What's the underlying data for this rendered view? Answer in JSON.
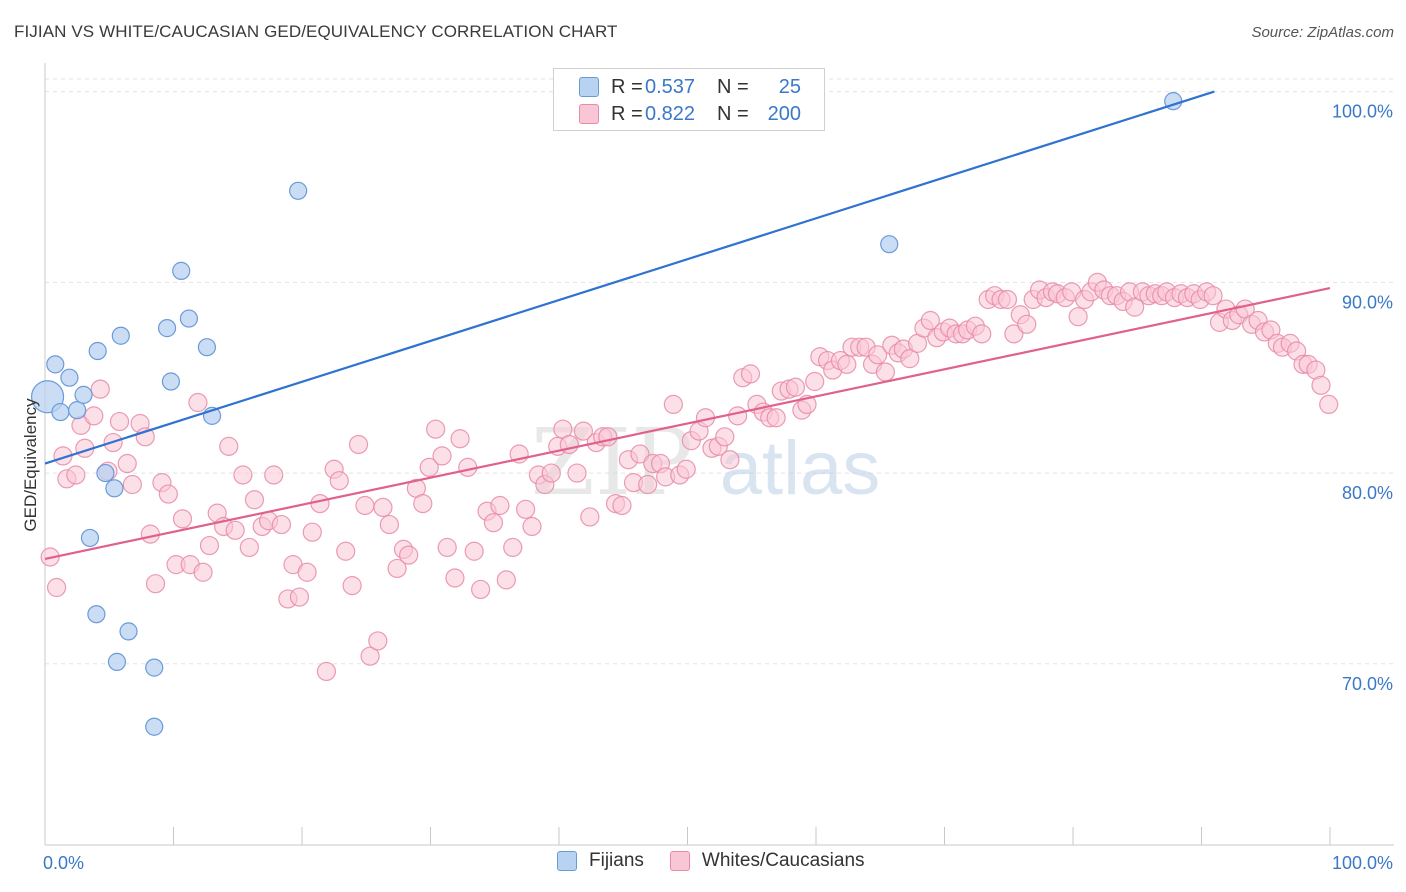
{
  "header": {
    "title": "FIJIAN VS WHITE/CAUCASIAN GED/EQUIVALENCY CORRELATION CHART",
    "source": "Source: ZipAtlas.com"
  },
  "legend_top": {
    "rows": [
      {
        "r_label": "R =",
        "r_value": "0.537",
        "n_label": "N =",
        "n_value": "25"
      },
      {
        "r_label": "R =",
        "r_value": "0.822",
        "n_label": "N =",
        "n_value": "200"
      }
    ]
  },
  "legend_bottom": {
    "items": [
      "Fijians",
      "Whites/Caucasians"
    ]
  },
  "watermark": {
    "zip": "ZIP",
    "atlas": "atlas"
  },
  "colors": {
    "blue_fill": "#b8d2f2",
    "blue_stroke": "#6a9bd8",
    "blue_line": "#2f72d0",
    "pink_fill": "#f9c6d6",
    "pink_stroke": "#e88aa8",
    "pink_line": "#e0608e",
    "tick_label": "#3a78c9",
    "grid": "#e3e3e3"
  },
  "chart_data": {
    "type": "scatter",
    "title": "FIJIAN VS WHITE/CAUCASIAN GED/EQUIVALENCY CORRELATION CHART",
    "xlabel": "",
    "ylabel": "GED/Equivalency",
    "xlim": [
      0,
      100
    ],
    "ylim": [
      60.5,
      101.5
    ],
    "x_tick_labels": [
      "0.0%",
      "100.0%"
    ],
    "y_ticks": [
      70,
      80,
      90,
      100
    ],
    "y_tick_labels": [
      "70.0%",
      "80.0%",
      "90.0%",
      "100.0%"
    ],
    "grid": true,
    "legend_position": "top-center",
    "series": [
      {
        "name": "Fijians",
        "r": 0.537,
        "n": 25,
        "trend": {
          "x": [
            0,
            91
          ],
          "y": [
            80.5,
            100
          ]
        },
        "points": [
          [
            0.2,
            84.0
          ],
          [
            0.8,
            85.7
          ],
          [
            1.2,
            83.2
          ],
          [
            1.9,
            85.0
          ],
          [
            2.5,
            83.3
          ],
          [
            3.0,
            84.1
          ],
          [
            3.5,
            76.6
          ],
          [
            4.0,
            72.6
          ],
          [
            4.1,
            86.4
          ],
          [
            4.7,
            80.0
          ],
          [
            5.4,
            79.2
          ],
          [
            5.9,
            87.2
          ],
          [
            6.5,
            71.7
          ],
          [
            5.6,
            70.1
          ],
          [
            8.5,
            69.8
          ],
          [
            8.5,
            66.7
          ],
          [
            9.5,
            87.6
          ],
          [
            9.8,
            84.8
          ],
          [
            10.6,
            90.6
          ],
          [
            11.2,
            88.1
          ],
          [
            12.6,
            86.6
          ],
          [
            19.7,
            94.8
          ],
          [
            65.7,
            92.0
          ],
          [
            87.8,
            99.5
          ],
          [
            13.0,
            83.0
          ]
        ]
      },
      {
        "name": "Whites/Caucasians",
        "r": 0.822,
        "n": 200,
        "trend": {
          "x": [
            0,
            100
          ],
          "y": [
            75.5,
            89.7
          ]
        },
        "points": [
          [
            0.4,
            75.6
          ],
          [
            0.9,
            74.0
          ],
          [
            1.4,
            80.9
          ],
          [
            1.7,
            79.7
          ],
          [
            2.4,
            79.9
          ],
          [
            2.8,
            82.5
          ],
          [
            3.1,
            81.3
          ],
          [
            3.8,
            83.0
          ],
          [
            4.3,
            84.4
          ],
          [
            4.9,
            80.1
          ],
          [
            5.3,
            81.6
          ],
          [
            5.8,
            82.7
          ],
          [
            6.4,
            80.5
          ],
          [
            6.8,
            79.4
          ],
          [
            7.4,
            82.6
          ],
          [
            7.8,
            81.9
          ],
          [
            8.2,
            76.8
          ],
          [
            8.6,
            74.2
          ],
          [
            9.1,
            79.5
          ],
          [
            9.6,
            78.9
          ],
          [
            10.2,
            75.2
          ],
          [
            10.7,
            77.6
          ],
          [
            11.3,
            75.2
          ],
          [
            11.9,
            83.7
          ],
          [
            12.3,
            74.8
          ],
          [
            12.8,
            76.2
          ],
          [
            13.4,
            77.9
          ],
          [
            13.9,
            77.2
          ],
          [
            14.3,
            81.4
          ],
          [
            14.8,
            77.0
          ],
          [
            15.4,
            79.9
          ],
          [
            15.9,
            76.1
          ],
          [
            16.3,
            78.6
          ],
          [
            16.9,
            77.2
          ],
          [
            17.4,
            77.5
          ],
          [
            17.8,
            79.9
          ],
          [
            18.4,
            77.3
          ],
          [
            18.9,
            73.4
          ],
          [
            19.3,
            75.2
          ],
          [
            19.8,
            73.5
          ],
          [
            20.4,
            74.8
          ],
          [
            20.8,
            76.9
          ],
          [
            21.4,
            78.4
          ],
          [
            21.9,
            69.6
          ],
          [
            22.5,
            80.2
          ],
          [
            22.9,
            79.6
          ],
          [
            23.4,
            75.9
          ],
          [
            23.9,
            74.1
          ],
          [
            24.4,
            81.5
          ],
          [
            24.9,
            78.3
          ],
          [
            25.3,
            70.4
          ],
          [
            25.9,
            71.2
          ],
          [
            26.3,
            78.2
          ],
          [
            26.8,
            77.3
          ],
          [
            27.4,
            75.0
          ],
          [
            27.9,
            76.0
          ],
          [
            28.3,
            75.7
          ],
          [
            28.9,
            79.2
          ],
          [
            29.4,
            78.4
          ],
          [
            29.9,
            80.3
          ],
          [
            30.4,
            82.3
          ],
          [
            30.9,
            80.9
          ],
          [
            31.3,
            76.1
          ],
          [
            31.9,
            74.5
          ],
          [
            32.3,
            81.8
          ],
          [
            32.9,
            80.3
          ],
          [
            33.4,
            75.9
          ],
          [
            33.9,
            73.9
          ],
          [
            34.4,
            78.0
          ],
          [
            34.9,
            77.4
          ],
          [
            35.4,
            78.3
          ],
          [
            35.9,
            74.4
          ],
          [
            36.4,
            76.1
          ],
          [
            36.9,
            81.0
          ],
          [
            37.4,
            78.1
          ],
          [
            37.9,
            77.2
          ],
          [
            38.4,
            79.9
          ],
          [
            38.9,
            79.4
          ],
          [
            39.4,
            80.0
          ],
          [
            39.9,
            81.4
          ],
          [
            40.3,
            82.3
          ],
          [
            40.8,
            81.5
          ],
          [
            41.4,
            80.0
          ],
          [
            41.9,
            82.2
          ],
          [
            42.4,
            77.7
          ],
          [
            42.9,
            81.6
          ],
          [
            43.4,
            81.9
          ],
          [
            43.8,
            81.9
          ],
          [
            44.4,
            78.4
          ],
          [
            44.9,
            78.3
          ],
          [
            45.4,
            80.7
          ],
          [
            45.8,
            79.5
          ],
          [
            46.3,
            81.0
          ],
          [
            46.9,
            79.4
          ],
          [
            47.3,
            80.5
          ],
          [
            47.9,
            80.5
          ],
          [
            48.3,
            79.8
          ],
          [
            48.9,
            83.6
          ],
          [
            49.4,
            79.9
          ],
          [
            49.9,
            80.2
          ],
          [
            50.3,
            81.7
          ],
          [
            50.9,
            82.2
          ],
          [
            51.4,
            82.9
          ],
          [
            51.9,
            81.3
          ],
          [
            52.4,
            81.4
          ],
          [
            52.9,
            81.9
          ],
          [
            53.3,
            80.7
          ],
          [
            53.9,
            83.0
          ],
          [
            54.3,
            85.0
          ],
          [
            54.9,
            85.2
          ],
          [
            55.4,
            83.6
          ],
          [
            55.9,
            83.2
          ],
          [
            56.4,
            82.9
          ],
          [
            56.9,
            82.9
          ],
          [
            57.3,
            84.3
          ],
          [
            57.9,
            84.4
          ],
          [
            58.4,
            84.5
          ],
          [
            58.9,
            83.3
          ],
          [
            59.3,
            83.6
          ],
          [
            59.9,
            84.8
          ],
          [
            60.3,
            86.1
          ],
          [
            60.9,
            85.9
          ],
          [
            61.3,
            85.4
          ],
          [
            61.9,
            85.9
          ],
          [
            62.4,
            85.7
          ],
          [
            62.8,
            86.6
          ],
          [
            63.4,
            86.6
          ],
          [
            63.9,
            86.6
          ],
          [
            64.4,
            85.7
          ],
          [
            64.8,
            86.2
          ],
          [
            65.4,
            85.3
          ],
          [
            65.9,
            86.7
          ],
          [
            66.4,
            86.3
          ],
          [
            66.8,
            86.5
          ],
          [
            67.3,
            86.0
          ],
          [
            67.9,
            86.8
          ],
          [
            68.4,
            87.6
          ],
          [
            68.9,
            88.0
          ],
          [
            69.4,
            87.1
          ],
          [
            69.9,
            87.4
          ],
          [
            70.4,
            87.6
          ],
          [
            70.9,
            87.3
          ],
          [
            71.4,
            87.3
          ],
          [
            71.8,
            87.5
          ],
          [
            72.4,
            87.7
          ],
          [
            72.9,
            87.3
          ],
          [
            73.4,
            89.1
          ],
          [
            73.9,
            89.3
          ],
          [
            74.4,
            89.1
          ],
          [
            74.9,
            89.1
          ],
          [
            75.4,
            87.3
          ],
          [
            75.9,
            88.3
          ],
          [
            76.4,
            87.8
          ],
          [
            76.9,
            89.1
          ],
          [
            77.4,
            89.6
          ],
          [
            77.9,
            89.2
          ],
          [
            78.4,
            89.5
          ],
          [
            78.8,
            89.4
          ],
          [
            79.4,
            89.2
          ],
          [
            79.9,
            89.5
          ],
          [
            80.4,
            88.2
          ],
          [
            80.9,
            89.1
          ],
          [
            81.4,
            89.5
          ],
          [
            81.9,
            90.0
          ],
          [
            82.4,
            89.6
          ],
          [
            82.9,
            89.3
          ],
          [
            83.4,
            89.3
          ],
          [
            83.9,
            89.0
          ],
          [
            84.4,
            89.5
          ],
          [
            84.8,
            88.7
          ],
          [
            85.4,
            89.5
          ],
          [
            85.9,
            89.3
          ],
          [
            86.4,
            89.4
          ],
          [
            86.9,
            89.3
          ],
          [
            87.3,
            89.5
          ],
          [
            87.9,
            89.2
          ],
          [
            88.4,
            89.4
          ],
          [
            88.9,
            89.2
          ],
          [
            89.4,
            89.4
          ],
          [
            89.9,
            89.1
          ],
          [
            90.4,
            89.5
          ],
          [
            90.9,
            89.3
          ],
          [
            91.4,
            87.9
          ],
          [
            91.9,
            88.6
          ],
          [
            92.4,
            88.0
          ],
          [
            92.9,
            88.3
          ],
          [
            93.4,
            88.6
          ],
          [
            93.9,
            87.8
          ],
          [
            94.4,
            88.0
          ],
          [
            94.9,
            87.4
          ],
          [
            95.4,
            87.5
          ],
          [
            95.9,
            86.8
          ],
          [
            96.3,
            86.6
          ],
          [
            96.9,
            86.8
          ],
          [
            97.4,
            86.4
          ],
          [
            97.9,
            85.7
          ],
          [
            98.3,
            85.7
          ],
          [
            98.9,
            85.4
          ],
          [
            99.3,
            84.6
          ],
          [
            99.9,
            83.6
          ]
        ]
      }
    ]
  }
}
